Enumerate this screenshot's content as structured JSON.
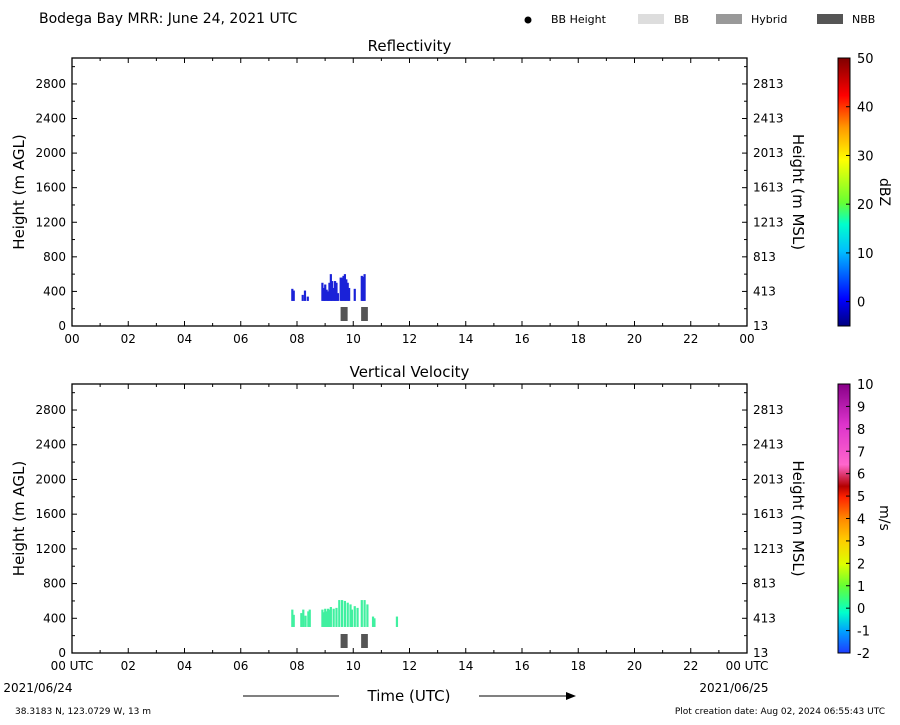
{
  "header": {
    "title": "Bodega Bay MRR:  June 24, 2021 UTC",
    "legend": [
      {
        "label": "BB Height",
        "symbol": "dot",
        "color": "#000000"
      },
      {
        "label": "BB",
        "symbol": "box",
        "color": "#dddddd"
      },
      {
        "label": "Hybrid",
        "symbol": "box",
        "color": "#999999"
      },
      {
        "label": "NBB",
        "symbol": "box",
        "color": "#555555"
      }
    ]
  },
  "footer": {
    "location": "38.3183 N, 123.0729 W, 13 m",
    "creation_date": "Plot creation date: Aug 02, 2024 06:55:43 UTC",
    "xlabel": "Time (UTC)",
    "start_date": "2021/06/24",
    "end_date": "2021/06/25"
  },
  "chart_data": [
    {
      "type": "heatmap",
      "title": "Reflectivity",
      "ylabel_left": "Height (m AGL)",
      "ylabel_right": "Height (m MSL)",
      "ylim": [
        0,
        3100
      ],
      "xlim": [
        0,
        24
      ],
      "yticks_left": [
        0,
        400,
        800,
        1200,
        1600,
        2000,
        2400,
        2800
      ],
      "yticks_right": [
        "13",
        "413",
        "813",
        "1213",
        "1613",
        "2013",
        "2413",
        "2813"
      ],
      "xtick_labels": [
        "00",
        "02",
        "04",
        "06",
        "08",
        "10",
        "12",
        "14",
        "16",
        "18",
        "20",
        "22",
        "00"
      ],
      "colorbar": {
        "label": "dBZ",
        "min": -5,
        "max": 50,
        "ticks": [
          0,
          10,
          20,
          30,
          40,
          50
        ]
      },
      "series": [
        {
          "values": [
            [
              7.83,
              290,
              430
            ],
            [
              7.88,
              290,
              410
            ],
            [
              8.2,
              290,
              360
            ],
            [
              8.28,
              290,
              410
            ],
            [
              8.38,
              290,
              340
            ],
            [
              8.9,
              290,
              500
            ],
            [
              8.95,
              290,
              440
            ],
            [
              9.0,
              290,
              480
            ],
            [
              9.05,
              290,
              420
            ],
            [
              9.1,
              290,
              400
            ],
            [
              9.15,
              290,
              500
            ],
            [
              9.2,
              290,
              600
            ],
            [
              9.25,
              290,
              520
            ],
            [
              9.3,
              290,
              440
            ],
            [
              9.35,
              290,
              520
            ],
            [
              9.4,
              290,
              500
            ],
            [
              9.45,
              290,
              380
            ],
            [
              9.55,
              290,
              560
            ],
            [
              9.6,
              290,
              560
            ],
            [
              9.65,
              290,
              580
            ],
            [
              9.7,
              290,
              600
            ],
            [
              9.75,
              290,
              540
            ],
            [
              9.8,
              290,
              500
            ],
            [
              9.85,
              290,
              440
            ],
            [
              10.05,
              290,
              430
            ],
            [
              10.3,
              290,
              580
            ],
            [
              10.35,
              290,
              570
            ],
            [
              10.4,
              290,
              600
            ]
          ]
        }
      ],
      "bb_segments": [
        {
          "category": "NBB",
          "start": 9.55,
          "end": 9.8
        },
        {
          "category": "NBB",
          "start": 10.28,
          "end": 10.52
        }
      ]
    },
    {
      "type": "heatmap",
      "title": "Vertical Velocity",
      "ylabel_left": "Height (m AGL)",
      "ylabel_right": "Height (m MSL)",
      "ylim": [
        0,
        3100
      ],
      "xlim": [
        0,
        24
      ],
      "yticks_left": [
        0,
        400,
        800,
        1200,
        1600,
        2000,
        2400,
        2800
      ],
      "yticks_right": [
        "13",
        "413",
        "813",
        "1213",
        "1613",
        "2013",
        "2413",
        "2813"
      ],
      "xtick_labels": [
        "00 UTC",
        "02",
        "04",
        "06",
        "08",
        "10",
        "12",
        "14",
        "16",
        "18",
        "20",
        "22",
        "00 UTC"
      ],
      "colorbar": {
        "label": "m/s",
        "min": -2,
        "max": 10,
        "ticks": [
          -2,
          -1,
          0,
          1,
          2,
          3,
          4,
          5,
          6,
          7,
          8,
          9,
          10
        ]
      },
      "series": [
        {
          "values": [
            [
              7.83,
              300,
              500
            ],
            [
              7.88,
              300,
              440
            ],
            [
              8.15,
              300,
              460
            ],
            [
              8.22,
              300,
              500
            ],
            [
              8.3,
              300,
              430
            ],
            [
              8.4,
              300,
              480
            ],
            [
              8.45,
              300,
              500
            ],
            [
              8.9,
              300,
              500
            ],
            [
              8.95,
              300,
              470
            ],
            [
              9.0,
              300,
              510
            ],
            [
              9.05,
              300,
              480
            ],
            [
              9.1,
              300,
              510
            ],
            [
              9.15,
              300,
              500
            ],
            [
              9.2,
              300,
              530
            ],
            [
              9.3,
              300,
              510
            ],
            [
              9.4,
              300,
              520
            ],
            [
              9.5,
              300,
              610
            ],
            [
              9.6,
              300,
              610
            ],
            [
              9.7,
              300,
              600
            ],
            [
              9.8,
              300,
              580
            ],
            [
              9.9,
              300,
              560
            ],
            [
              9.95,
              300,
              500
            ],
            [
              10.05,
              300,
              540
            ],
            [
              10.15,
              300,
              520
            ],
            [
              10.3,
              300,
              610
            ],
            [
              10.4,
              300,
              610
            ],
            [
              10.5,
              300,
              560
            ],
            [
              10.7,
              300,
              420
            ],
            [
              10.75,
              300,
              400
            ],
            [
              11.55,
              300,
              420
            ]
          ]
        }
      ],
      "bb_segments": [
        {
          "category": "NBB",
          "start": 9.55,
          "end": 9.8
        },
        {
          "category": "NBB",
          "start": 10.28,
          "end": 10.52
        }
      ]
    }
  ]
}
